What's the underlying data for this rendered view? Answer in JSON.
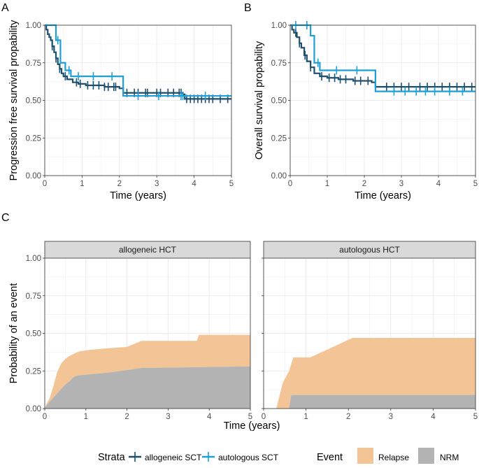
{
  "colors": {
    "allo": "#1d4e6e",
    "auto": "#1da0d8",
    "relapse": "#f3c596",
    "nrm": "#b3b3b3",
    "grid": "#ebebeb",
    "strip_bg": "#d9d9d9"
  },
  "chart_data": [
    {
      "type": "line",
      "panel_label": "A",
      "title": "",
      "xlabel": "Time (years)",
      "ylabel": "Progression free survival propability",
      "xlim": [
        0,
        5
      ],
      "ylim": [
        0,
        1
      ],
      "x_ticks": [
        "0",
        "1",
        "2",
        "3",
        "4",
        "5"
      ],
      "y_ticks": [
        "0.00",
        "0.25",
        "0.50",
        "0.75",
        "1.00"
      ],
      "series": [
        {
          "name": "allogeneic SCT",
          "color_key": "allo",
          "steps": [
            [
              0,
              1.0
            ],
            [
              0.04,
              0.97
            ],
            [
              0.08,
              0.94
            ],
            [
              0.12,
              0.92
            ],
            [
              0.16,
              0.9
            ],
            [
              0.2,
              0.86
            ],
            [
              0.25,
              0.82
            ],
            [
              0.3,
              0.78
            ],
            [
              0.35,
              0.74
            ],
            [
              0.4,
              0.71
            ],
            [
              0.45,
              0.68
            ],
            [
              0.5,
              0.66
            ],
            [
              0.6,
              0.64
            ],
            [
              0.75,
              0.62
            ],
            [
              0.9,
              0.61
            ],
            [
              1.1,
              0.6
            ],
            [
              1.6,
              0.59
            ],
            [
              2.0,
              0.58
            ],
            [
              2.1,
              0.55
            ],
            [
              3.7,
              0.54
            ],
            [
              3.75,
              0.51
            ],
            [
              5.0,
              0.51
            ]
          ],
          "censors": [
            0.2,
            0.3,
            0.4,
            0.55,
            0.85,
            0.95,
            1.15,
            1.3,
            1.45,
            1.6,
            1.7,
            1.85,
            1.9,
            2.2,
            2.4,
            2.5,
            2.7,
            2.75,
            3.0,
            3.1,
            3.3,
            3.45,
            3.6,
            3.65,
            3.8,
            3.9,
            4.0,
            4.1,
            4.2,
            4.3,
            4.4,
            4.5,
            4.7,
            4.9
          ]
        },
        {
          "name": "autologous SCT",
          "color_key": "auto",
          "steps": [
            [
              0,
              1.0
            ],
            [
              0.3,
              0.9
            ],
            [
              0.42,
              0.75
            ],
            [
              0.55,
              0.7
            ],
            [
              0.7,
              0.66
            ],
            [
              2.05,
              0.66
            ],
            [
              2.1,
              0.53
            ],
            [
              5.0,
              0.53
            ]
          ],
          "censors": [
            0.35,
            0.65,
            0.9,
            1.3,
            1.8,
            2.5,
            3.05,
            3.65,
            3.7,
            4.3
          ]
        }
      ]
    },
    {
      "type": "line",
      "panel_label": "B",
      "title": "",
      "xlabel": "Time (years)",
      "ylabel": "Overall survival propability",
      "xlim": [
        0,
        5
      ],
      "ylim": [
        0,
        1
      ],
      "x_ticks": [
        "0",
        "1",
        "2",
        "3",
        "4",
        "5"
      ],
      "y_ticks": [
        "0.00",
        "0.25",
        "0.50",
        "0.75",
        "1.00"
      ],
      "series": [
        {
          "name": "allogeneic SCT",
          "color_key": "allo",
          "steps": [
            [
              0,
              1.0
            ],
            [
              0.05,
              0.97
            ],
            [
              0.1,
              0.95
            ],
            [
              0.18,
              0.92
            ],
            [
              0.25,
              0.88
            ],
            [
              0.3,
              0.85
            ],
            [
              0.38,
              0.8
            ],
            [
              0.45,
              0.76
            ],
            [
              0.55,
              0.72
            ],
            [
              0.65,
              0.68
            ],
            [
              0.8,
              0.66
            ],
            [
              1.0,
              0.65
            ],
            [
              1.3,
              0.64
            ],
            [
              1.7,
              0.63
            ],
            [
              2.2,
              0.62
            ],
            [
              2.3,
              0.59
            ],
            [
              5.0,
              0.59
            ]
          ],
          "censors": [
            0.15,
            0.25,
            0.4,
            0.55,
            0.85,
            1.05,
            1.2,
            1.35,
            1.5,
            1.75,
            1.9,
            2.1,
            2.6,
            2.8,
            3.0,
            3.2,
            3.5,
            3.7,
            3.9,
            4.1,
            4.3,
            4.5,
            4.7,
            4.9
          ]
        },
        {
          "name": "autologous SCT",
          "color_key": "auto",
          "steps": [
            [
              0,
              1.0
            ],
            [
              0.55,
              0.93
            ],
            [
              0.65,
              0.75
            ],
            [
              0.8,
              0.7
            ],
            [
              2.25,
              0.7
            ],
            [
              2.3,
              0.56
            ],
            [
              5.0,
              0.56
            ]
          ],
          "censors": [
            0.15,
            0.45,
            0.75,
            1.25,
            1.8,
            2.8,
            3.1,
            3.4,
            3.65,
            3.9,
            4.3,
            4.65
          ]
        }
      ]
    },
    {
      "type": "area",
      "panel_label": "C",
      "title": "",
      "xlabel": "Time (years)",
      "ylabel": "Probability of an event",
      "xlim": [
        0,
        5
      ],
      "ylim": [
        0,
        1
      ],
      "x_ticks": [
        "0",
        "1",
        "2",
        "3",
        "4",
        "5"
      ],
      "y_ticks": [
        "0.00",
        "0.25",
        "0.50",
        "0.75",
        "1.00"
      ],
      "facets": [
        {
          "label": "allogeneic HCT",
          "nrm": [
            [
              0,
              0.0
            ],
            [
              0.04,
              0.02
            ],
            [
              0.1,
              0.04
            ],
            [
              0.2,
              0.07
            ],
            [
              0.3,
              0.1
            ],
            [
              0.4,
              0.13
            ],
            [
              0.5,
              0.16
            ],
            [
              0.6,
              0.18
            ],
            [
              0.7,
              0.21
            ],
            [
              0.8,
              0.22
            ],
            [
              1.2,
              0.23
            ],
            [
              1.6,
              0.24
            ],
            [
              2.35,
              0.27
            ],
            [
              5.0,
              0.28
            ]
          ],
          "total": [
            [
              0,
              0.0
            ],
            [
              0.04,
              0.03
            ],
            [
              0.12,
              0.07
            ],
            [
              0.2,
              0.14
            ],
            [
              0.3,
              0.24
            ],
            [
              0.4,
              0.3
            ],
            [
              0.5,
              0.33
            ],
            [
              0.6,
              0.35
            ],
            [
              0.75,
              0.37
            ],
            [
              0.85,
              0.38
            ],
            [
              1.1,
              0.39
            ],
            [
              1.5,
              0.4
            ],
            [
              2.0,
              0.41
            ],
            [
              2.35,
              0.45
            ],
            [
              3.0,
              0.45
            ],
            [
              3.7,
              0.45
            ],
            [
              3.75,
              0.49
            ],
            [
              5.0,
              0.49
            ]
          ]
        },
        {
          "label": "autologous HCT",
          "nrm": [
            [
              0.3,
              0.0
            ],
            [
              0.6,
              0.0
            ],
            [
              0.65,
              0.09
            ],
            [
              5.0,
              0.09
            ]
          ],
          "total": [
            [
              0.3,
              0.0
            ],
            [
              0.45,
              0.17
            ],
            [
              0.6,
              0.25
            ],
            [
              0.7,
              0.34
            ],
            [
              1.1,
              0.34
            ],
            [
              2.1,
              0.47
            ],
            [
              5.0,
              0.47
            ]
          ]
        }
      ]
    }
  ],
  "legend": {
    "strata_title": "Strata",
    "strata_items": [
      "allogeneic SCT",
      "autologous SCT"
    ],
    "event_title": "Event",
    "event_items": [
      "Relapse",
      "NRM"
    ]
  }
}
